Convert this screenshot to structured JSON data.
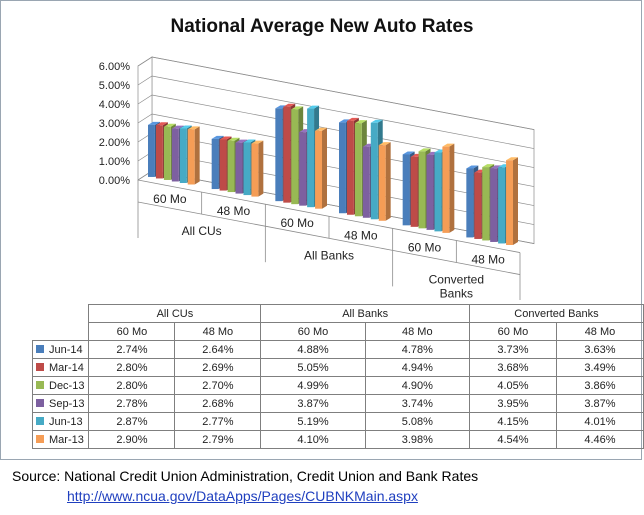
{
  "chart_data": {
    "type": "bar",
    "title": "National Average New Auto Rates",
    "groups": [
      "All CUs",
      "All Banks",
      "Converted Banks"
    ],
    "categories": [
      "60 Mo",
      "48 Mo",
      "60 Mo",
      "48 Mo",
      "60 Mo",
      "48 Mo"
    ],
    "category_groups": [
      "All CUs",
      "All CUs",
      "All Banks",
      "All Banks",
      "Converted Banks",
      "Converted Banks"
    ],
    "group_labels_display": [
      [
        "All CUs"
      ],
      [
        "All Banks"
      ],
      [
        "Converted",
        "Banks"
      ]
    ],
    "yticks": [
      "0.00%",
      "1.00%",
      "2.00%",
      "3.00%",
      "4.00%",
      "5.00%",
      "6.00%"
    ],
    "ylim": [
      0,
      6
    ],
    "grid": true,
    "legend": "data table",
    "series": [
      {
        "name": "Jun-14",
        "color": "#4a7ebb",
        "values": [
          2.74,
          2.64,
          4.88,
          4.78,
          3.73,
          3.63
        ],
        "labels": [
          "2.74%",
          "2.64%",
          "4.88%",
          "4.78%",
          "3.73%",
          "3.63%"
        ]
      },
      {
        "name": "Mar-14",
        "color": "#be4b48",
        "values": [
          2.8,
          2.69,
          5.05,
          4.94,
          3.68,
          3.49
        ],
        "labels": [
          "2.80%",
          "2.69%",
          "5.05%",
          "4.94%",
          "3.68%",
          "3.49%"
        ]
      },
      {
        "name": "Dec-13",
        "color": "#98b954",
        "values": [
          2.8,
          2.7,
          4.99,
          4.9,
          4.05,
          3.86
        ],
        "labels": [
          "2.80%",
          "2.70%",
          "4.99%",
          "4.90%",
          "4.05%",
          "3.86%"
        ]
      },
      {
        "name": "Sep-13",
        "color": "#7d60a0",
        "values": [
          2.78,
          2.68,
          3.87,
          3.74,
          3.95,
          3.87
        ],
        "labels": [
          "2.78%",
          "2.68%",
          "3.87%",
          "3.74%",
          "3.95%",
          "3.87%"
        ]
      },
      {
        "name": "Jun-13",
        "color": "#46aac5",
        "values": [
          2.87,
          2.77,
          5.19,
          5.08,
          4.15,
          4.01
        ],
        "labels": [
          "2.87%",
          "2.77%",
          "5.19%",
          "5.08%",
          "4.15%",
          "4.01%"
        ]
      },
      {
        "name": "Mar-13",
        "color": "#f59d56",
        "values": [
          2.9,
          2.79,
          4.1,
          3.98,
          4.54,
          4.46
        ],
        "labels": [
          "2.90%",
          "2.79%",
          "4.10%",
          "3.98%",
          "4.54%",
          "4.46%"
        ]
      }
    ]
  },
  "source": {
    "line1": "Source: National Credit Union Administration, Credit Union and Bank Rates",
    "url": "http://www.ncua.gov/DataApps/Pages/CUBNKMain.aspx"
  }
}
